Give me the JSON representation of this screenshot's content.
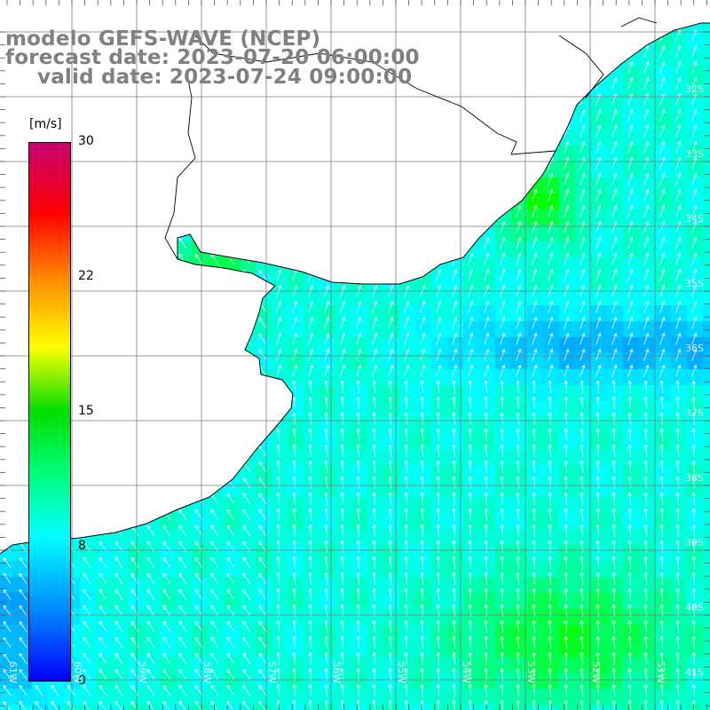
{
  "header": {
    "line1": "modelo GEFS-WAVE (NCEP)",
    "line2": "forecast date: 2023-07-20 06:00:00",
    "line3": "valid date: 2023-07-24 09:00:00"
  },
  "colorbar": {
    "units": "[m/s]",
    "ticks": [
      "30",
      "22",
      "15",
      "8",
      "0"
    ],
    "tick_values": [
      30,
      22,
      15,
      8,
      0
    ],
    "range": [
      0,
      30
    ],
    "colors": [
      "#0000ff",
      "#00aaff",
      "#00ffff",
      "#00ff00",
      "#ffff00",
      "#ff8000",
      "#ff0000",
      "#c80060"
    ]
  },
  "grid": {
    "lat_labels": [
      "32S",
      "33S",
      "34S",
      "35S",
      "36S",
      "37S",
      "38S",
      "39S",
      "40S",
      "41S"
    ],
    "lon_labels": [
      "61W",
      "60W",
      "59W",
      "58W",
      "57W",
      "56W",
      "55W",
      "54W",
      "53W",
      "52W",
      "51W"
    ]
  },
  "map": {
    "land_color": "#ffffff",
    "coast_color": "#000000",
    "grid_color": "#7a7a7a",
    "arrow_color": "#ffffff",
    "field": "wind speed with wind direction arrows"
  }
}
